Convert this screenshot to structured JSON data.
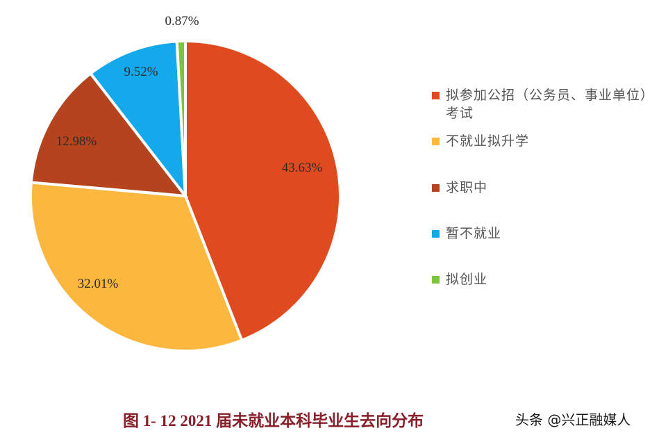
{
  "chart_data": {
    "type": "pie",
    "title": "图 1- 12    2021 届未就业本科毕业生去向分布",
    "start_angle": "12 o'clock",
    "direction": "clockwise",
    "categories": [
      "拟参加公招（公务员、事业单位）考试",
      "不就业拟升学",
      "求职中",
      "暂不就业",
      "拟创业"
    ],
    "values": [
      43.63,
      32.01,
      12.98,
      9.52,
      0.87
    ],
    "labels": [
      "43.63%",
      "32.01%",
      "12.98%",
      "9.52%",
      "0.87%"
    ],
    "colors": [
      "#e04a1f",
      "#fbb73e",
      "#b5441e",
      "#14a9ea",
      "#7dc43c"
    ],
    "legend_position": "right"
  },
  "legend": {
    "items": [
      {
        "label": "拟参加公招（公务员、事业单位）考试",
        "color": "#e04a1f"
      },
      {
        "label": "不就业拟升学",
        "color": "#fbb73e"
      },
      {
        "label": "求职中",
        "color": "#b5441e"
      },
      {
        "label": "暂不就业",
        "color": "#14a9ea"
      },
      {
        "label": "拟创业",
        "color": "#7dc43c"
      }
    ]
  },
  "caption": {
    "text": "图 1- 12    2021 届未就业本科毕业生去向分布"
  },
  "watermark": {
    "text": "头条 @兴正融媒人"
  }
}
